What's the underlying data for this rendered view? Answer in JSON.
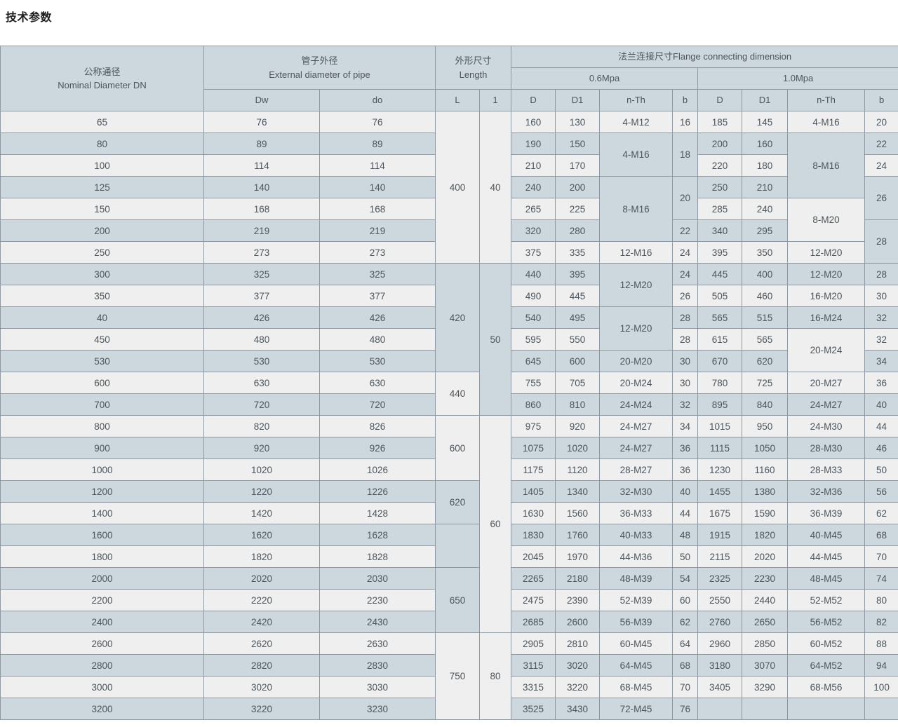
{
  "page": {
    "title": "技术参数"
  },
  "colors": {
    "title_text": "#1d1d1d",
    "text": "#4c555b",
    "border": "#8e99a1",
    "header_bg": "#ccd7de",
    "row_light": "#efefef",
    "row_blue": "#ccd7de"
  },
  "table": {
    "header_rows": [
      [
        {
          "t": "公称通径\nNominal Diameter DN",
          "rs": 3
        },
        {
          "t": "管子外径\nExternal diameter of pipe",
          "rs": 2,
          "cs": 2
        },
        {
          "t": "外形尺寸\nLength",
          "rs": 2,
          "cs": 2
        },
        {
          "t": "法兰连接尺寸Flange connecting dimension",
          "cs": 8
        }
      ],
      [
        {
          "t": "0.6Mpa",
          "cs": 4
        },
        {
          "t": "1.0Mpa",
          "cs": 4
        }
      ],
      [
        {
          "t": "Dw"
        },
        {
          "t": "do"
        },
        {
          "t": "L"
        },
        {
          "t": "1"
        },
        {
          "t": "D"
        },
        {
          "t": "D1"
        },
        {
          "t": "n-Th"
        },
        {
          "t": "b"
        },
        {
          "t": "D"
        },
        {
          "t": "D1"
        },
        {
          "t": "n-Th"
        },
        {
          "t": "b"
        }
      ]
    ],
    "rows": [
      [
        "65",
        "76",
        "76",
        {
          "t": "400",
          "rs": 7
        },
        {
          "t": "40",
          "rs": 7
        },
        "160",
        "130",
        "4-M12",
        "16",
        "185",
        "145",
        "4-M16",
        "20"
      ],
      [
        "80",
        "89",
        "89",
        "190",
        "150",
        {
          "t": "4-M16",
          "rs": 2
        },
        {
          "t": "18",
          "rs": 2
        },
        "200",
        "160",
        {
          "t": "8-M16",
          "rs": 3
        },
        "22"
      ],
      [
        "100",
        "114",
        "114",
        "210",
        "170",
        "220",
        "180",
        "24"
      ],
      [
        "125",
        "140",
        "140",
        "240",
        "200",
        {
          "t": "8-M16",
          "rs": 3
        },
        {
          "t": "20",
          "rs": 2
        },
        "250",
        "210",
        {
          "t": "26",
          "rs": 2
        }
      ],
      [
        "150",
        "168",
        "168",
        "265",
        "225",
        "285",
        "240",
        {
          "t": "8-M20",
          "rs": 2
        }
      ],
      [
        "200",
        "219",
        "219",
        "320",
        "280",
        "22",
        "340",
        "295",
        {
          "t": "28",
          "rs": 2
        }
      ],
      [
        "250",
        "273",
        "273",
        "375",
        "335",
        "12-M16",
        "24",
        "395",
        "350",
        "12-M20"
      ],
      [
        "300",
        "325",
        "325",
        {
          "t": "420",
          "rs": 5
        },
        {
          "t": "50",
          "rs": 7
        },
        "440",
        "395",
        {
          "t": "12-M20",
          "rs": 2
        },
        "24",
        "445",
        "400",
        "12-M20",
        "28"
      ],
      [
        "350",
        "377",
        "377",
        "490",
        "445",
        "26",
        "505",
        "460",
        "16-M20",
        "30"
      ],
      [
        "40",
        "426",
        "426",
        "540",
        "495",
        {
          "t": "12-M20",
          "rs": 2
        },
        "28",
        "565",
        "515",
        "16-M24",
        "32"
      ],
      [
        "450",
        "480",
        "480",
        "595",
        "550",
        "28",
        "615",
        "565",
        {
          "t": "20-M24",
          "rs": 2
        },
        "32"
      ],
      [
        "530",
        "530",
        "530",
        "645",
        "600",
        "20-M20",
        "30",
        "670",
        "620",
        "34"
      ],
      [
        "600",
        "630",
        "630",
        {
          "t": "440",
          "rs": 2
        },
        "755",
        "705",
        "20-M24",
        "30",
        "780",
        "725",
        "20-M27",
        "36"
      ],
      [
        "700",
        "720",
        "720",
        "860",
        "810",
        "24-M24",
        "32",
        "895",
        "840",
        "24-M27",
        "40"
      ],
      [
        "800",
        "820",
        "826",
        {
          "t": "600",
          "rs": 3
        },
        {
          "t": "60",
          "rs": 10
        },
        "975",
        "920",
        "24-M27",
        "34",
        "1015",
        "950",
        "24-M30",
        "44"
      ],
      [
        "900",
        "920",
        "926",
        "1075",
        "1020",
        "24-M27",
        "36",
        "1115",
        "1050",
        "28-M30",
        "46"
      ],
      [
        "1000",
        "1020",
        "1026",
        "1175",
        "1120",
        "28-M27",
        "36",
        "1230",
        "1160",
        "28-M33",
        "50"
      ],
      [
        "1200",
        "1220",
        "1226",
        {
          "t": "620",
          "rs": 2
        },
        "1405",
        "1340",
        "32-M30",
        "40",
        "1455",
        "1380",
        "32-M36",
        "56"
      ],
      [
        "1400",
        "1420",
        "1428",
        "1630",
        "1560",
        "36-M33",
        "44",
        "1675",
        "1590",
        "36-M39",
        "62"
      ],
      [
        "1600",
        "1620",
        "1628",
        {
          "t": "",
          "rs": 2
        },
        "1830",
        "1760",
        "40-M33",
        "48",
        "1915",
        "1820",
        "40-M45",
        "68"
      ],
      [
        "1800",
        "1820",
        "1828",
        "2045",
        "1970",
        "44-M36",
        "50",
        "2115",
        "2020",
        "44-M45",
        "70"
      ],
      [
        "2000",
        "2020",
        "2030",
        {
          "t": "650",
          "rs": 3
        },
        "2265",
        "2180",
        "48-M39",
        "54",
        "2325",
        "2230",
        "48-M45",
        "74"
      ],
      [
        "2200",
        "2220",
        "2230",
        "2475",
        "2390",
        "52-M39",
        "60",
        "2550",
        "2440",
        "52-M52",
        "80"
      ],
      [
        "2400",
        "2420",
        "2430",
        "2685",
        "2600",
        "56-M39",
        "62",
        "2760",
        "2650",
        "56-M52",
        "82"
      ],
      [
        "2600",
        "2620",
        "2630",
        {
          "t": "750",
          "rs": 4
        },
        {
          "t": "80",
          "rs": 4
        },
        "2905",
        "2810",
        "60-M45",
        "64",
        "2960",
        "2850",
        "60-M52",
        "88"
      ],
      [
        "2800",
        "2820",
        "2830",
        "3115",
        "3020",
        "64-M45",
        "68",
        "3180",
        "3070",
        "64-M52",
        "94"
      ],
      [
        "3000",
        "3020",
        "3030",
        "3315",
        "3220",
        "68-M45",
        "70",
        "3405",
        "3290",
        "68-M56",
        "100"
      ],
      [
        "3200",
        "3220",
        "3230",
        "3525",
        "3430",
        "72-M45",
        "76",
        "",
        "",
        "",
        ""
      ]
    ]
  }
}
